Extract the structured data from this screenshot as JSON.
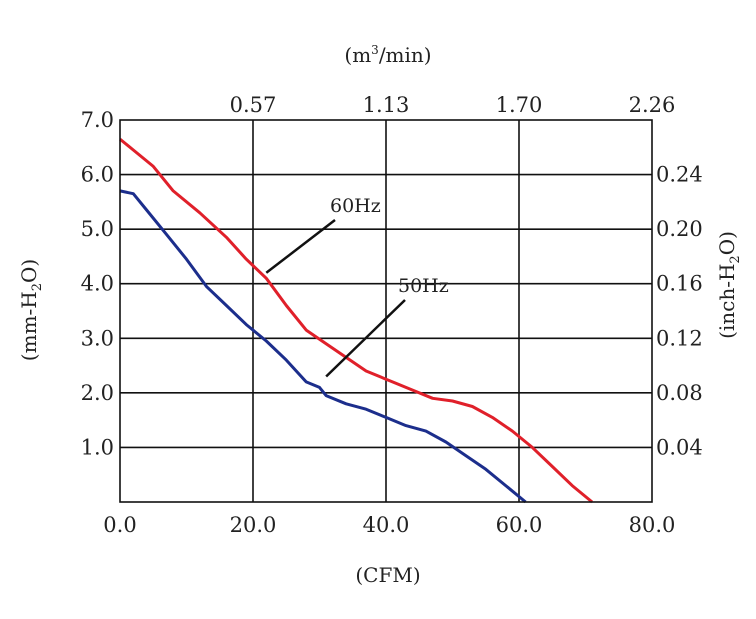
{
  "chart_data": {
    "type": "line",
    "x": {
      "label": "(CFM)",
      "range": [
        0,
        80
      ],
      "ticks": [
        "0.0",
        "20.0",
        "40.0",
        "60.0",
        "80.0"
      ]
    },
    "x_top": {
      "label_main": "(m",
      "label_sup": "3",
      "label_rest": "/min)",
      "ticks": [
        "0.57",
        "1.13",
        "1.70",
        "2.26"
      ]
    },
    "y": {
      "label_main": "(mm-H",
      "label_sub": "2",
      "label_rest": "O)",
      "range": [
        0,
        7
      ],
      "ticks": [
        "1.0",
        "2.0",
        "3.0",
        "4.0",
        "5.0",
        "6.0",
        "7.0"
      ]
    },
    "y_right": {
      "label_main": "(inch-H",
      "label_sub": "2",
      "label_rest": "O)",
      "ticks": [
        "0.04",
        "0.08",
        "0.12",
        "0.16",
        "0.20",
        "0.24"
      ]
    },
    "grid": true,
    "series": [
      {
        "name": "60Hz",
        "color": "#e0202a",
        "points": [
          [
            0,
            6.65
          ],
          [
            2,
            6.45
          ],
          [
            5,
            6.15
          ],
          [
            8,
            5.7
          ],
          [
            12,
            5.3
          ],
          [
            16,
            4.85
          ],
          [
            19,
            4.45
          ],
          [
            22,
            4.1
          ],
          [
            25,
            3.6
          ],
          [
            28,
            3.15
          ],
          [
            31,
            2.9
          ],
          [
            34,
            2.65
          ],
          [
            37,
            2.4
          ],
          [
            40,
            2.25
          ],
          [
            44,
            2.05
          ],
          [
            47,
            1.9
          ],
          [
            50,
            1.85
          ],
          [
            53,
            1.75
          ],
          [
            56,
            1.55
          ],
          [
            59,
            1.3
          ],
          [
            62,
            1.0
          ],
          [
            65,
            0.65
          ],
          [
            68,
            0.3
          ],
          [
            71,
            0.0
          ]
        ]
      },
      {
        "name": "50Hz",
        "color": "#1c2e8c",
        "points": [
          [
            0,
            5.7
          ],
          [
            2,
            5.65
          ],
          [
            4,
            5.35
          ],
          [
            7,
            4.9
          ],
          [
            10,
            4.45
          ],
          [
            13,
            3.95
          ],
          [
            16,
            3.6
          ],
          [
            19,
            3.25
          ],
          [
            22,
            2.95
          ],
          [
            25,
            2.6
          ],
          [
            28,
            2.2
          ],
          [
            30,
            2.1
          ],
          [
            31,
            1.95
          ],
          [
            34,
            1.8
          ],
          [
            37,
            1.7
          ],
          [
            40,
            1.55
          ],
          [
            43,
            1.4
          ],
          [
            46,
            1.3
          ],
          [
            49,
            1.1
          ],
          [
            52,
            0.85
          ],
          [
            55,
            0.6
          ],
          [
            58,
            0.3
          ],
          [
            61,
            0.0
          ]
        ]
      }
    ],
    "annotations": [
      {
        "text": "60Hz",
        "series": "60Hz"
      },
      {
        "text": "50Hz",
        "series": "50Hz"
      }
    ]
  }
}
